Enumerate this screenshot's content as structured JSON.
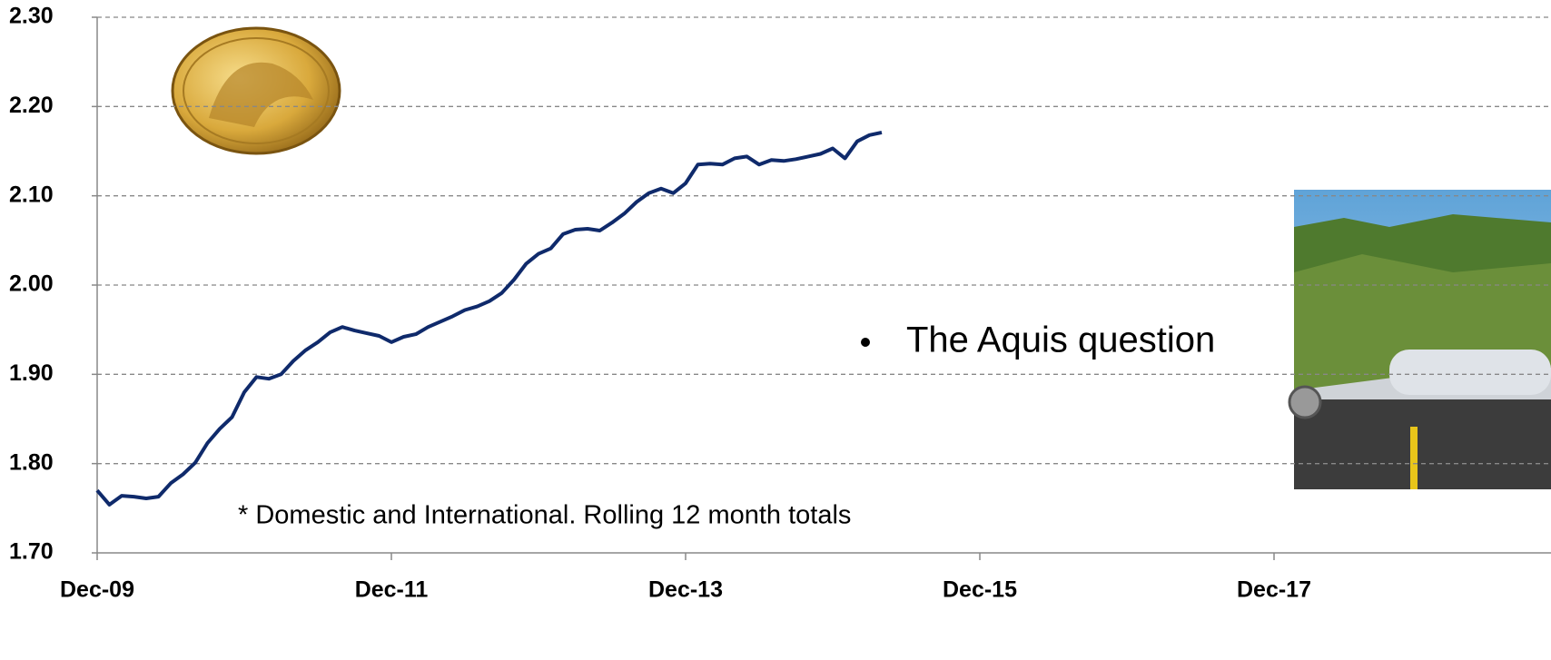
{
  "chart_data": {
    "type": "line",
    "x": [
      "2009-12",
      "2010-01",
      "2010-02",
      "2010-03",
      "2010-04",
      "2010-05",
      "2010-06",
      "2010-07",
      "2010-08",
      "2010-09",
      "2010-10",
      "2010-11",
      "2010-12",
      "2011-01",
      "2011-02",
      "2011-03",
      "2011-04",
      "2011-05",
      "2011-06",
      "2011-07",
      "2011-08",
      "2011-09",
      "2011-10",
      "2011-11",
      "2011-12",
      "2012-01",
      "2012-02",
      "2012-03",
      "2012-04",
      "2012-05",
      "2012-06",
      "2012-07",
      "2012-08",
      "2012-09",
      "2012-10",
      "2012-11",
      "2012-12",
      "2013-01",
      "2013-02",
      "2013-03",
      "2013-04",
      "2013-05",
      "2013-06",
      "2013-07",
      "2013-08",
      "2013-09",
      "2013-10",
      "2013-11",
      "2013-12",
      "2014-01",
      "2014-02",
      "2014-03",
      "2014-04",
      "2014-05",
      "2014-06",
      "2014-07",
      "2014-08",
      "2014-09",
      "2014-10",
      "2014-11",
      "2014-12",
      "2015-01",
      "2015-02",
      "2015-03",
      "2015-04"
    ],
    "values": [
      1.77,
      1.754,
      1.764,
      1.763,
      1.761,
      1.763,
      1.778,
      1.788,
      1.801,
      1.823,
      1.839,
      1.852,
      1.88,
      1.897,
      1.895,
      1.9,
      1.915,
      1.927,
      1.936,
      1.947,
      1.953,
      1.949,
      1.946,
      1.943,
      1.936,
      1.942,
      1.945,
      1.953,
      1.959,
      1.965,
      1.972,
      1.976,
      1.982,
      1.991,
      2.006,
      2.024,
      2.035,
      2.041,
      2.057,
      2.062,
      2.063,
      2.061,
      2.07,
      2.08,
      2.093,
      2.103,
      2.108,
      2.103,
      2.114,
      2.135,
      2.136,
      2.135,
      2.142,
      2.144,
      2.135,
      2.14,
      2.139,
      2.141,
      2.144,
      2.147,
      2.153,
      2.142,
      2.161,
      2.168,
      2.171
    ],
    "color": "#0f2a6b",
    "ylim": [
      1.7,
      2.3
    ],
    "yticks": [
      {
        "value": 1.7,
        "label": "1.70"
      },
      {
        "value": 1.8,
        "label": "1.80"
      },
      {
        "value": 1.9,
        "label": "1.90"
      },
      {
        "value": 2.0,
        "label": "2.00"
      },
      {
        "value": 2.1,
        "label": "2.10"
      },
      {
        "value": 2.2,
        "label": "2.20"
      },
      {
        "value": 2.3,
        "label": "2.30"
      }
    ],
    "xlim": [
      "2009-12",
      "2019-10"
    ],
    "xticks": [
      {
        "value": "2009-12",
        "label": "Dec-09"
      },
      {
        "value": "2011-12",
        "label": "Dec-11"
      },
      {
        "value": "2013-12",
        "label": "Dec-13"
      },
      {
        "value": "2015-12",
        "label": "Dec-15"
      },
      {
        "value": "2017-12",
        "label": "Dec-17"
      }
    ],
    "grid": true,
    "annotations": [
      "The Aquis question",
      "* Domestic and International. Rolling 12 month totals"
    ]
  }
}
